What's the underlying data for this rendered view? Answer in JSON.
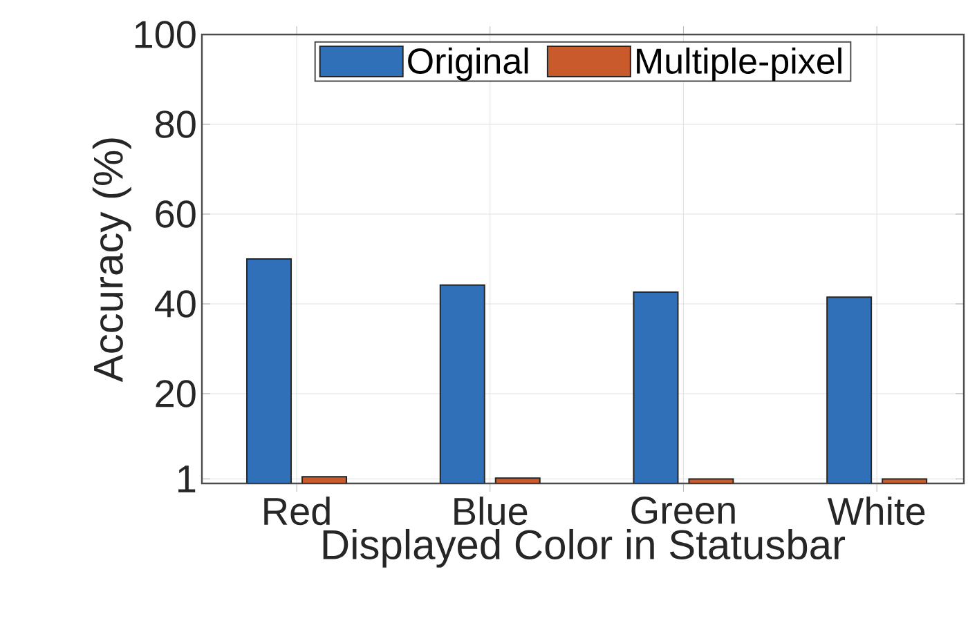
{
  "chart_data": {
    "type": "bar",
    "xlabel": "Displayed Color in Statusbar",
    "ylabel": "Accuracy (%)",
    "categories": [
      "Red",
      "Blue",
      "Green",
      "White"
    ],
    "series": [
      {
        "name": "Original",
        "color": "#3070b8",
        "values": [
          50,
          44.2,
          42.6,
          41.5
        ]
      },
      {
        "name": "Multiple-pixel",
        "color": "#c85a2c",
        "values": [
          1.5,
          1.2,
          1.0,
          1.0
        ]
      }
    ],
    "ylim": [
      0,
      100
    ],
    "yticks": [
      1,
      20,
      40,
      60,
      80,
      100
    ],
    "grid": true,
    "legend": "top"
  }
}
